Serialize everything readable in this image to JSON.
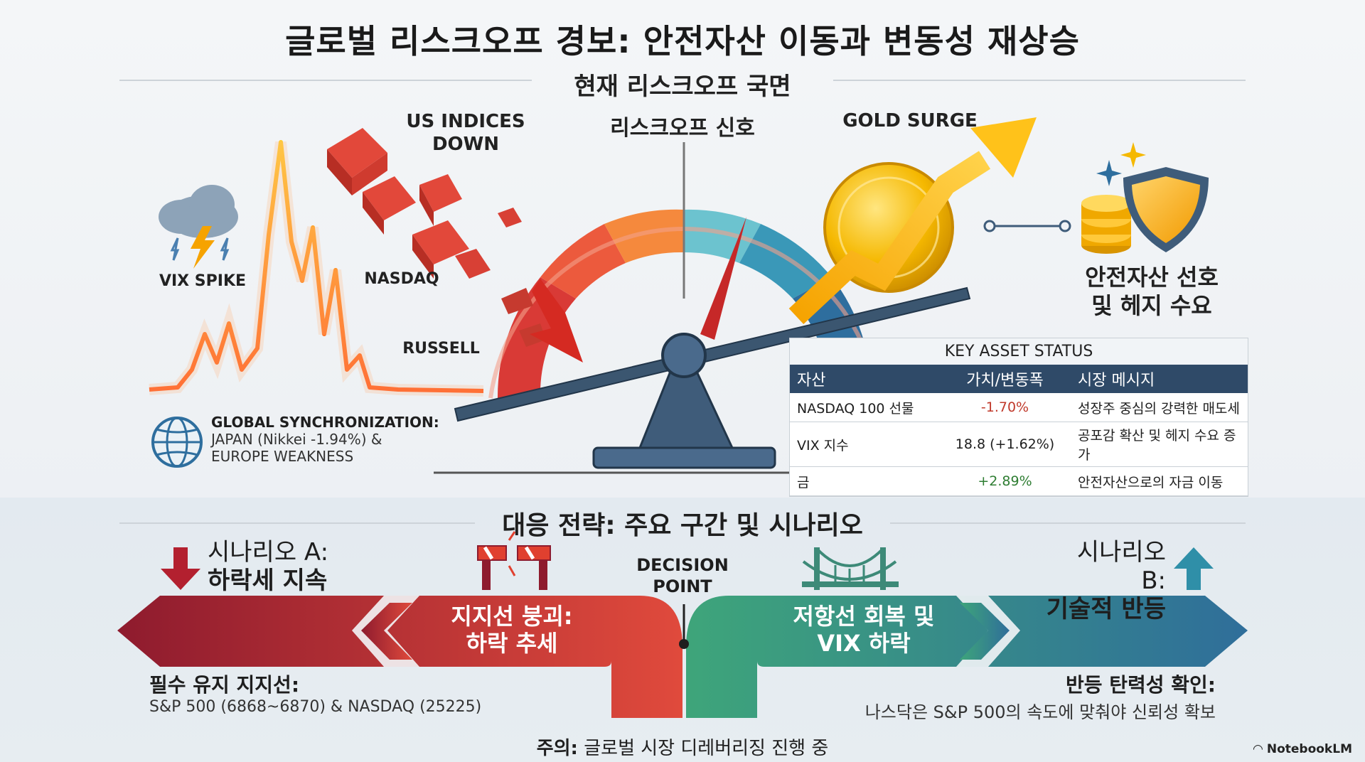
{
  "header": {
    "title": "글로벌 리스크오프 경보: 안전자산 이동과 변동성 재상승",
    "subtitle": "현재 리스크오프 국면"
  },
  "top": {
    "us_indices_label": "US INDICES\nDOWN",
    "signal_label": "리스크오프 신호",
    "gold_label": "GOLD SURGE",
    "vix_label": "VIX SPIKE",
    "nasdaq_label": "NASDAQ",
    "russell_label": "RUSSELL",
    "safe_haven_label": "안전자산 선호\n및 헤지 수요",
    "global_sync": {
      "title": "GLOBAL SYNCHRONIZATION:",
      "line1": "JAPAN (Nikkei -1.94%) &",
      "line2": "EUROPE WEAKNESS"
    }
  },
  "key_asset_status": {
    "title": "KEY ASSET STATUS",
    "columns": [
      "자산",
      "가치/변동폭",
      "시장 메시지"
    ],
    "rows": [
      {
        "asset": "NASDAQ 100 선물",
        "value": "-1.70%",
        "message": "성장주 중심의 강력한 매도세",
        "color": "#c0392b"
      },
      {
        "asset": "VIX 지수",
        "value": "18.8 (+1.62%)",
        "message": "공포감 확산 및 헤지 수요 증가",
        "color": "#2e7d32"
      },
      {
        "asset": "금",
        "value": "+2.89%",
        "message": "안전자산으로의 자금 이동",
        "color": "#2e7d32"
      }
    ]
  },
  "strategy": {
    "title": "대응 전략: 주요 구간 및 시나리오",
    "scenario_a_prefix": "시나리오 A:",
    "scenario_a_name": "하락세 지속",
    "scenario_b_prefix": "시나리오 B:",
    "scenario_b_name": "기술적 반등",
    "decision_point": "DECISION\nPOINT",
    "left_arrow_text": "지지선 붕괴:\n하락 추세",
    "right_arrow_text": "저항선 회복 및\nVIX 하락",
    "support_title": "필수 유지 지지선:",
    "support_detail": "S&P 500 (6868~6870) & NASDAQ (25225)",
    "rebound_title": "반등 탄력성 확인:",
    "rebound_detail": "나스닥은 S&P 500의 속도에 맞춰야 신뢰성 확보",
    "caution_label": "주의:",
    "caution_text": "글로벌 시장 디레버리징 진행 중"
  },
  "brand": "NotebookLM",
  "colors": {
    "risk_red": "#c0392b",
    "gold": "#f5b800",
    "teal": "#2a7f8f",
    "navy": "#2f4a68",
    "green_text": "#2e7d32"
  }
}
